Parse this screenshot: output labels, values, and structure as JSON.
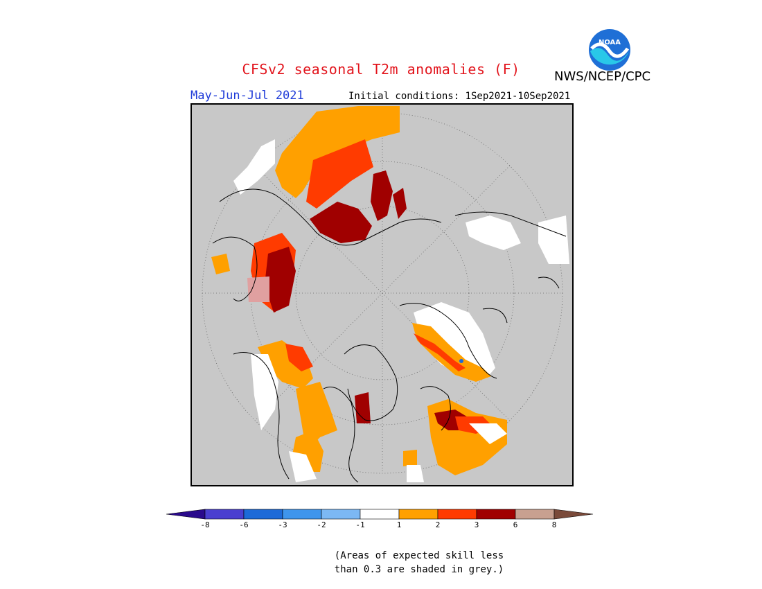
{
  "header": {
    "title": "CFSv2 seasonal T2m anomalies (F)",
    "organization": "NWS/NCEP/CPC",
    "logo_text": "NOAA",
    "period": "May-Jun-Jul 2021",
    "initial_conditions": "Initial conditions: 1Sep2021-10Sep2021"
  },
  "map": {
    "projection": "north-polar-stereographic",
    "background_color": "#c8c8c8",
    "description": "Northern hemisphere polar view with anomaly shading; grey where skill is below 0.3"
  },
  "legend": {
    "tick_labels": [
      "-8",
      "-6",
      "-3",
      "-2",
      "-1",
      "1",
      "2",
      "3",
      "6",
      "8"
    ],
    "bins": [
      {
        "color": "#2a0a8c"
      },
      {
        "color": "#4a3fd0"
      },
      {
        "color": "#1d6ad8"
      },
      {
        "color": "#3f95ec"
      },
      {
        "color": "#7cb8f4"
      },
      {
        "color": "#ffffff"
      },
      {
        "color": "#ffa000"
      },
      {
        "color": "#ff3b00"
      },
      {
        "color": "#a00000"
      },
      {
        "color": "#c8a090"
      },
      {
        "color": "#7a4a3a"
      }
    ]
  },
  "note": {
    "line1": "(Areas of expected skill less",
    "line2": "than 0.3 are shaded in grey.)"
  }
}
